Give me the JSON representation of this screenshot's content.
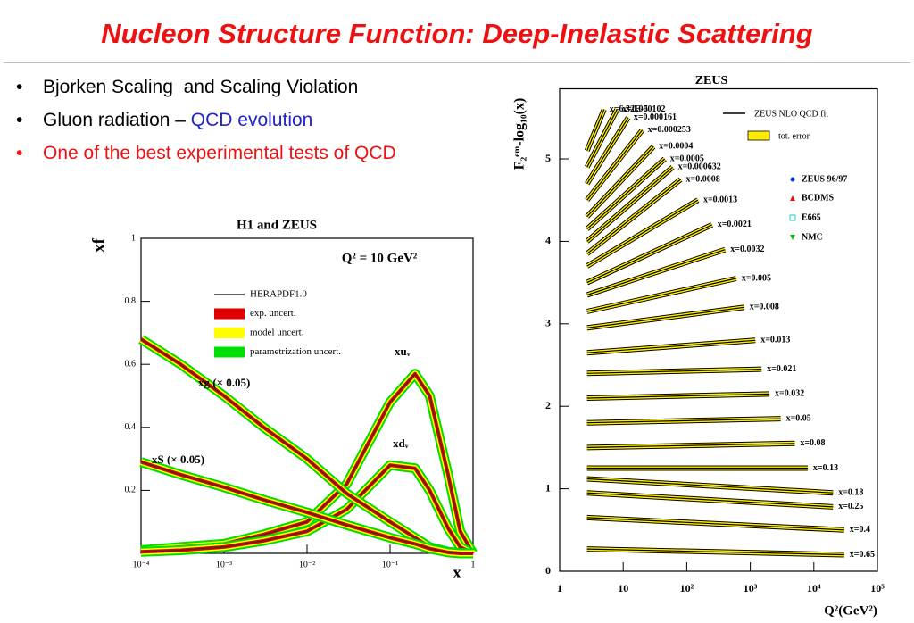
{
  "title": "Nucleon Structure Function: Deep-Inelastic Scattering",
  "bullets": [
    {
      "text": "Bjorken Scaling  and Scaling Violation"
    },
    {
      "text": "Gluon radiation – ",
      "highlight": "QCD evolution"
    },
    {
      "text": "One of the best experimental tests of QCD"
    }
  ],
  "chart_data": [
    {
      "type": "line",
      "title": "H1 and ZEUS",
      "annotation": "Q² = 10 GeV²",
      "x_label": "x",
      "y_label": "xf",
      "xlog": true,
      "xlim": [
        0.0001,
        1
      ],
      "ylim": [
        0,
        1
      ],
      "xticks": [
        {
          "value": 0.0001,
          "label": "10⁻⁴"
        },
        {
          "value": 0.001,
          "label": "10⁻³"
        },
        {
          "value": 0.01,
          "label": "10⁻²"
        },
        {
          "value": 0.1,
          "label": "10⁻¹"
        },
        1
      ],
      "yticks": [
        0.2,
        0.4,
        0.6,
        0.8,
        1
      ],
      "legend": [
        {
          "name": "HERAPDF1.0",
          "color": "#333333"
        },
        {
          "name": "exp. uncert.",
          "color": "#e00000"
        },
        {
          "name": "model uncert.",
          "color": "#ffff00"
        },
        {
          "name": "parametrization uncert.",
          "color": "#00dd00"
        }
      ],
      "x": [
        0.0001,
        0.0003,
        0.001,
        0.003,
        0.01,
        0.03,
        0.1,
        0.2,
        0.3,
        0.5,
        0.7,
        1
      ],
      "series": [
        {
          "name": "xuᵥ",
          "values": [
            0.01,
            0.02,
            0.03,
            0.06,
            0.1,
            0.22,
            0.48,
            0.57,
            0.5,
            0.25,
            0.07,
            0
          ]
        },
        {
          "name": "xdᵥ",
          "values": [
            0.005,
            0.01,
            0.02,
            0.04,
            0.07,
            0.14,
            0.28,
            0.27,
            0.2,
            0.08,
            0.02,
            0
          ]
        },
        {
          "name": "xg (× 0.05)",
          "values": [
            0.68,
            0.6,
            0.5,
            0.4,
            0.3,
            0.19,
            0.1,
            0.05,
            0.02,
            0.005,
            0.001,
            0
          ]
        },
        {
          "name": "xS (× 0.05)",
          "values": [
            0.29,
            0.25,
            0.21,
            0.17,
            0.13,
            0.09,
            0.05,
            0.03,
            0.015,
            0.003,
            0,
            0
          ]
        }
      ]
    },
    {
      "type": "line",
      "title": "ZEUS",
      "x_label": "Q²(GeV²)",
      "y_label": "F₂ᵉᵐ-log₁₀(x)",
      "xlog": true,
      "xlim": [
        1,
        100000
      ],
      "ylim": [
        0,
        5.85
      ],
      "xticks": [
        1,
        10,
        {
          "value": 100,
          "label": "10²"
        },
        {
          "value": 1000,
          "label": "10³"
        },
        {
          "value": 10000,
          "label": "10⁴"
        },
        {
          "value": 100000,
          "label": "10⁵"
        }
      ],
      "yticks": [
        0,
        1,
        2,
        3,
        4,
        5
      ],
      "legend": [
        {
          "name": "ZEUS NLO QCD fit",
          "color": "#000000"
        },
        {
          "name": "tot. error",
          "color": "#ffee00"
        },
        {
          "name": "ZEUS 96/97",
          "color": "#1133dd"
        },
        {
          "name": "BCDMS",
          "color": "#ee1111"
        },
        {
          "name": "E665",
          "color": "#22cccc"
        },
        {
          "name": "NMC",
          "color": "#11bb11"
        }
      ],
      "series": [
        {
          "name": "x=6.32E-5",
          "x": [
            2.7,
            5
          ],
          "values": [
            5.1,
            5.6
          ]
        },
        {
          "name": "x=0.000102",
          "x": [
            2.7,
            8
          ],
          "values": [
            4.9,
            5.6
          ]
        },
        {
          "name": "x=0.000161",
          "x": [
            2.7,
            12
          ],
          "values": [
            4.7,
            5.5
          ]
        },
        {
          "name": "x=0.000253",
          "x": [
            2.7,
            20
          ],
          "values": [
            4.5,
            5.35
          ]
        },
        {
          "name": "x=0.0004",
          "x": [
            2.7,
            30
          ],
          "values": [
            4.3,
            5.15
          ]
        },
        {
          "name": "x=0.0005",
          "x": [
            2.7,
            45
          ],
          "values": [
            4.15,
            5.0
          ]
        },
        {
          "name": "x=0.000632",
          "x": [
            2.7,
            60
          ],
          "values": [
            4.0,
            4.9
          ]
        },
        {
          "name": "x=0.0008",
          "x": [
            2.7,
            80
          ],
          "values": [
            3.85,
            4.75
          ]
        },
        {
          "name": "x=0.0013",
          "x": [
            2.7,
            150
          ],
          "values": [
            3.7,
            4.5
          ]
        },
        {
          "name": "x=0.0021",
          "x": [
            2.7,
            250
          ],
          "values": [
            3.5,
            4.2
          ]
        },
        {
          "name": "x=0.0032",
          "x": [
            2.7,
            400
          ],
          "values": [
            3.35,
            3.9
          ]
        },
        {
          "name": "x=0.005",
          "x": [
            2.7,
            600
          ],
          "values": [
            3.15,
            3.55
          ]
        },
        {
          "name": "x=0.008",
          "x": [
            2.7,
            800
          ],
          "values": [
            2.95,
            3.2
          ]
        },
        {
          "name": "x=0.013",
          "x": [
            2.7,
            1200
          ],
          "values": [
            2.65,
            2.8
          ]
        },
        {
          "name": "x=0.021",
          "x": [
            2.7,
            1500
          ],
          "values": [
            2.4,
            2.45
          ]
        },
        {
          "name": "x=0.032",
          "x": [
            2.7,
            2000
          ],
          "values": [
            2.1,
            2.15
          ]
        },
        {
          "name": "x=0.05",
          "x": [
            2.7,
            3000
          ],
          "values": [
            1.8,
            1.85
          ]
        },
        {
          "name": "x=0.08",
          "x": [
            2.7,
            5000
          ],
          "values": [
            1.5,
            1.55
          ]
        },
        {
          "name": "x=0.13",
          "x": [
            2.7,
            8000
          ],
          "values": [
            1.25,
            1.25
          ]
        },
        {
          "name": "x=0.18",
          "x": [
            2.7,
            20000
          ],
          "values": [
            1.12,
            0.95
          ]
        },
        {
          "name": "x=0.25",
          "x": [
            2.7,
            20000
          ],
          "values": [
            0.95,
            0.78
          ]
        },
        {
          "name": "x=0.4",
          "x": [
            2.7,
            30000
          ],
          "values": [
            0.65,
            0.5
          ]
        },
        {
          "name": "x=0.65",
          "x": [
            2.7,
            30000
          ],
          "values": [
            0.27,
            0.2
          ]
        }
      ]
    }
  ]
}
